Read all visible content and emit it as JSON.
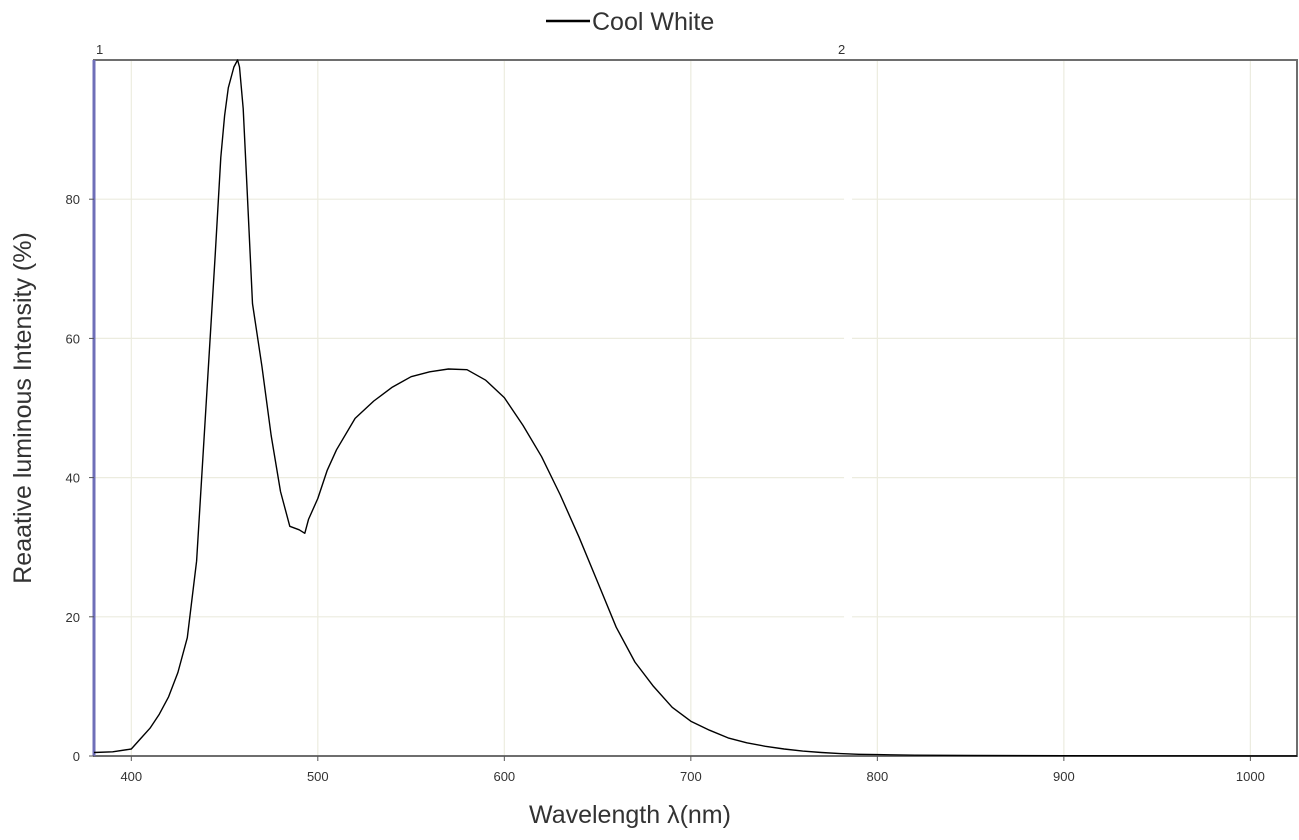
{
  "chart_data": {
    "type": "line",
    "title": "",
    "legend": {
      "entries": [
        "Cool White"
      ],
      "placement": "top-center"
    },
    "xlabel": "Wavelength  λ(nm)",
    "ylabel": "Reaative luminous Intensity  (%)",
    "xlim": [
      380,
      1025
    ],
    "ylim": [
      0,
      100
    ],
    "xticks": [
      400,
      500,
      600,
      700,
      800,
      900,
      1000
    ],
    "yticks": [
      0,
      20,
      40,
      60,
      80
    ],
    "grid": true,
    "cursor_markers": [
      {
        "label": "1",
        "x": 380
      },
      {
        "label": "2",
        "x": 780
      }
    ],
    "series": [
      {
        "name": "Cool White",
        "color": "#000000",
        "x": [
          380,
          390,
          400,
          405,
          410,
          415,
          420,
          425,
          430,
          435,
          440,
          445,
          448,
          450,
          452,
          455,
          457,
          458,
          460,
          462,
          465,
          470,
          475,
          480,
          485,
          490,
          493,
          495,
          500,
          505,
          510,
          520,
          530,
          540,
          550,
          560,
          570,
          580,
          590,
          600,
          610,
          620,
          630,
          640,
          650,
          660,
          670,
          680,
          690,
          700,
          710,
          720,
          730,
          740,
          750,
          760,
          770,
          780,
          790,
          800,
          820,
          850,
          900,
          950,
          1000,
          1025
        ],
        "values": [
          0.5,
          0.6,
          1.0,
          2.5,
          4.0,
          6.0,
          8.5,
          12.0,
          17.0,
          28.0,
          50.0,
          72.0,
          86.0,
          92.0,
          96.0,
          99.0,
          100.0,
          99.0,
          93.0,
          82.0,
          65.0,
          56.0,
          46.0,
          38.0,
          33.0,
          32.5,
          32.0,
          34.0,
          37.0,
          41.0,
          44.0,
          48.5,
          51.0,
          53.0,
          54.5,
          55.2,
          55.6,
          55.5,
          54.0,
          51.5,
          47.5,
          43.0,
          37.5,
          31.5,
          25.0,
          18.5,
          13.5,
          10.0,
          7.0,
          5.0,
          3.7,
          2.6,
          1.9,
          1.4,
          1.0,
          0.7,
          0.5,
          0.35,
          0.25,
          0.2,
          0.12,
          0.08,
          0.05,
          0.03,
          0.02,
          0.02
        ]
      }
    ]
  }
}
